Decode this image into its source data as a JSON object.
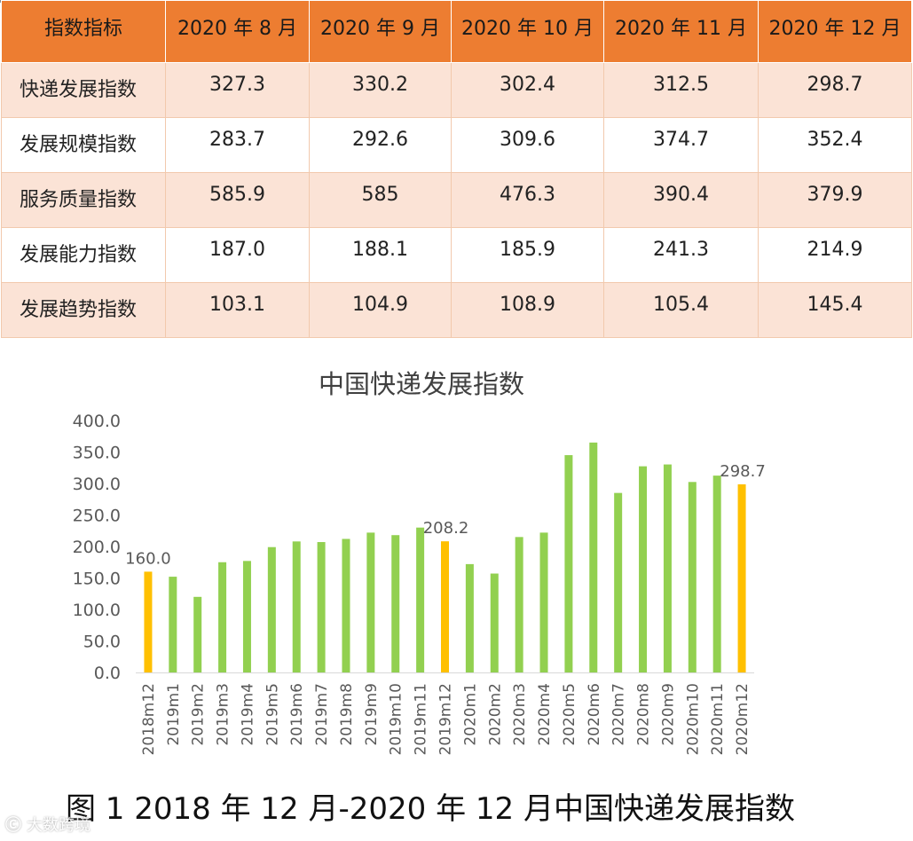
{
  "table": {
    "header": [
      "指数指标",
      "2020 年 8 月",
      "2020 年 9 月",
      "2020 年 10 月",
      "2020 年 11 月",
      "2020 年 12 月"
    ],
    "rows": [
      {
        "label": "快递发展指数",
        "values": [
          "327.3",
          "330.2",
          "302.4",
          "312.5",
          "298.7"
        ]
      },
      {
        "label": "发展规模指数",
        "values": [
          "283.7",
          "292.6",
          "309.6",
          "374.7",
          "352.4"
        ]
      },
      {
        "label": "服务质量指数",
        "values": [
          "585.9",
          "585",
          "476.3",
          "390.4",
          "379.9"
        ]
      },
      {
        "label": "发展能力指数",
        "values": [
          "187.0",
          "188.1",
          "185.9",
          "241.3",
          "214.9"
        ]
      },
      {
        "label": "发展趋势指数",
        "values": [
          "103.1",
          "104.9",
          "108.9",
          "105.4",
          "145.4"
        ]
      }
    ]
  },
  "chart_data": {
    "type": "bar",
    "title": "中国快递发展指数",
    "categories": [
      "2018m12",
      "2019m1",
      "2019m2",
      "2019m3",
      "2019m4",
      "2019m5",
      "2019m6",
      "2019m7",
      "2019m8",
      "2019m9",
      "2019m10",
      "2019m11",
      "2019m12",
      "2020m1",
      "2020m2",
      "2020m3",
      "2020m4",
      "2020m5",
      "2020m6",
      "2020m7",
      "2020m8",
      "2020m9",
      "2020m10",
      "2020m11",
      "2020m12"
    ],
    "values": [
      160.0,
      152,
      120,
      175,
      177,
      199,
      208,
      207,
      212,
      222,
      218,
      230,
      208.2,
      172,
      157,
      215,
      222,
      345,
      365,
      285,
      327.3,
      330.2,
      302.4,
      312.5,
      298.7
    ],
    "highlight_indices": [
      0,
      12,
      24
    ],
    "data_labels": {
      "0": "160.0",
      "12": "208.2",
      "24": "298.7"
    },
    "ylim": [
      0,
      400
    ],
    "yticks": [
      "0.0",
      "50.0",
      "100.0",
      "150.0",
      "200.0",
      "250.0",
      "300.0",
      "350.0",
      "400.0"
    ],
    "grid": false,
    "colors": {
      "bar": "#92d050",
      "highlight": "#ffc000",
      "axis": "#d9d9d9",
      "text": "#595959"
    }
  },
  "caption": "图 1 2018 年 12 月-2020 年 12 月中国快递发展指数",
  "watermark": "大数跨境"
}
